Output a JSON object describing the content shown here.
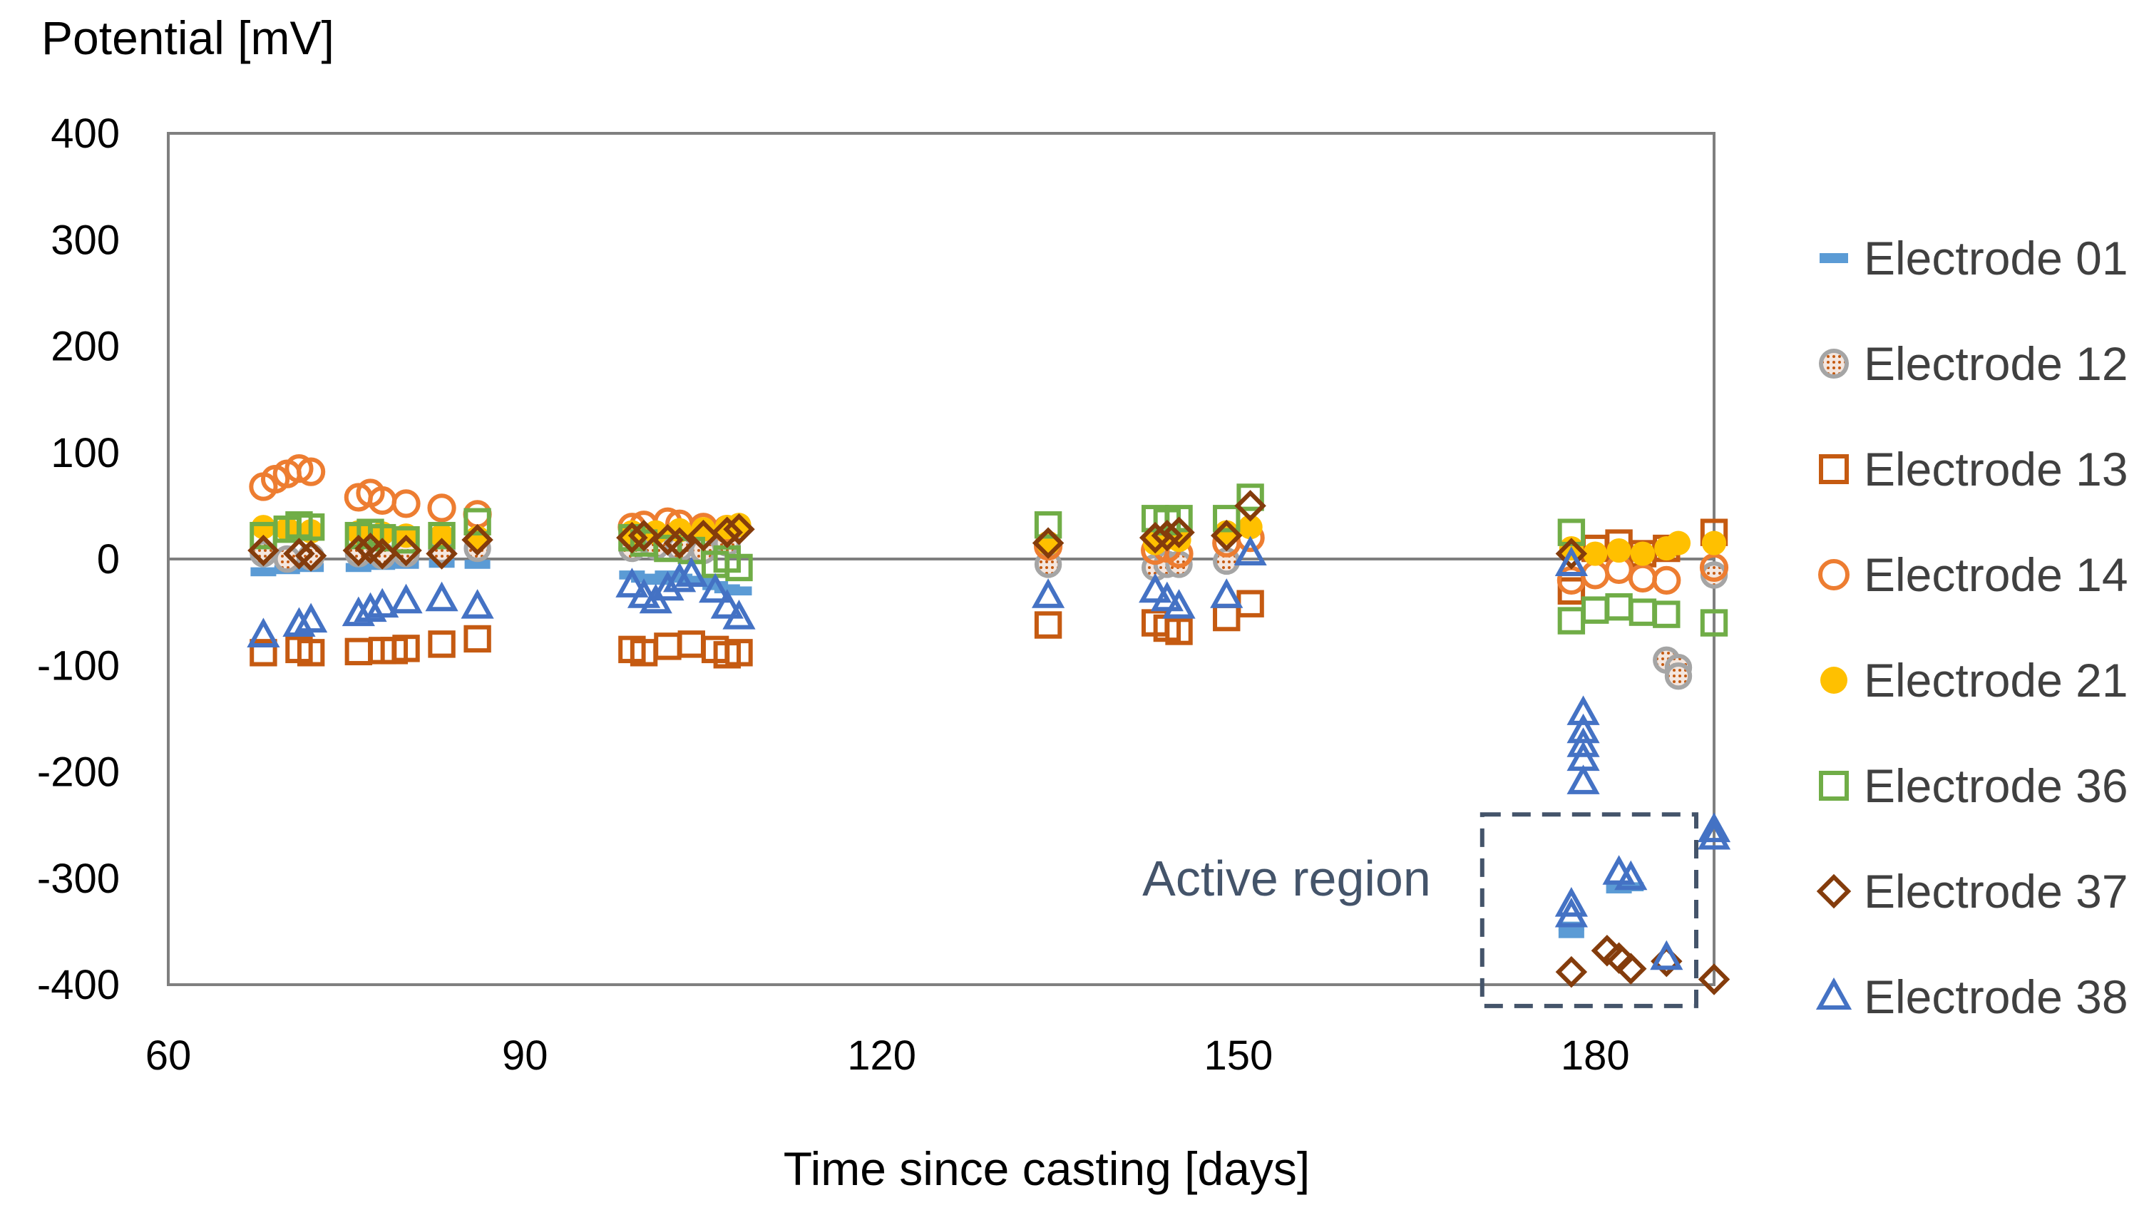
{
  "chart_data": {
    "type": "scatter",
    "title": "",
    "xlabel": "Time since casting [days]",
    "ylabel": "Potential [mV]",
    "xlim": [
      60,
      190
    ],
    "ylim": [
      -400,
      400
    ],
    "xticks": [
      60,
      90,
      120,
      150,
      180
    ],
    "yticks": [
      400,
      300,
      200,
      100,
      0,
      -100,
      -200,
      -300,
      -400
    ],
    "grid": false,
    "legend_position": "right",
    "colors": {
      "electrode_01": "#5B9BD5",
      "electrode_12": "#A5A5A5",
      "electrode_13": "#C55A11",
      "electrode_14": "#ED7D31",
      "electrode_21": "#FFC000",
      "electrode_36": "#70AD47",
      "electrode_37": "#843C0C",
      "electrode_38": "#4472C4",
      "annotation": "#44546A",
      "axis": "#7F7F7F"
    },
    "annotations": [
      {
        "text": "Active region",
        "box_x": [
          170.5,
          188.5
        ],
        "box_y": [
          -420,
          -240
        ]
      }
    ],
    "series": [
      {
        "name": "Electrode 01",
        "marker": "dash",
        "color_key": "electrode_01",
        "points": [
          [
            68,
            -12
          ],
          [
            70,
            -10
          ],
          [
            72,
            -8
          ],
          [
            76,
            -8
          ],
          [
            78,
            -6
          ],
          [
            80,
            -5
          ],
          [
            83,
            -4
          ],
          [
            86,
            -5
          ],
          [
            99,
            -15
          ],
          [
            100,
            -18
          ],
          [
            101,
            -20
          ],
          [
            102,
            -15
          ],
          [
            103,
            -18
          ],
          [
            104,
            -20
          ],
          [
            105,
            -22
          ],
          [
            106,
            -25
          ],
          [
            107,
            -28
          ],
          [
            108,
            -30
          ],
          [
            178,
            -345
          ],
          [
            178,
            -352
          ],
          [
            182,
            -310
          ],
          [
            183,
            -308
          ]
        ]
      },
      {
        "name": "Electrode 12",
        "marker": "dotted-circle",
        "color_key": "electrode_12",
        "points": [
          [
            68,
            5
          ],
          [
            70,
            0
          ],
          [
            72,
            2
          ],
          [
            76,
            5
          ],
          [
            78,
            3
          ],
          [
            80,
            5
          ],
          [
            83,
            8
          ],
          [
            86,
            10
          ],
          [
            99,
            10
          ],
          [
            101,
            12
          ],
          [
            103,
            10
          ],
          [
            105,
            8
          ],
          [
            107,
            15
          ],
          [
            134,
            -5
          ],
          [
            143,
            -8
          ],
          [
            144,
            -5
          ],
          [
            145,
            -5
          ],
          [
            149,
            -2
          ],
          [
            186,
            -95
          ],
          [
            187,
            -102
          ],
          [
            187,
            -110
          ],
          [
            190,
            -15
          ]
        ]
      },
      {
        "name": "Electrode 13",
        "marker": "square-open",
        "color_key": "electrode_13",
        "points": [
          [
            68,
            -88
          ],
          [
            71,
            -85
          ],
          [
            72,
            -88
          ],
          [
            76,
            -87
          ],
          [
            78,
            -86
          ],
          [
            79,
            -86
          ],
          [
            80,
            -84
          ],
          [
            83,
            -80
          ],
          [
            86,
            -75
          ],
          [
            99,
            -85
          ],
          [
            100,
            -88
          ],
          [
            102,
            -82
          ],
          [
            104,
            -80
          ],
          [
            106,
            -85
          ],
          [
            107,
            -90
          ],
          [
            108,
            -88
          ],
          [
            134,
            -62
          ],
          [
            143,
            -60
          ],
          [
            144,
            -65
          ],
          [
            145,
            -68
          ],
          [
            149,
            -55
          ],
          [
            151,
            -42
          ],
          [
            178,
            -30
          ],
          [
            180,
            10
          ],
          [
            182,
            15
          ],
          [
            184,
            5
          ],
          [
            186,
            10
          ],
          [
            190,
            25
          ]
        ]
      },
      {
        "name": "Electrode 14",
        "marker": "circle-open",
        "color_key": "electrode_14",
        "points": [
          [
            68,
            68
          ],
          [
            69,
            75
          ],
          [
            70,
            80
          ],
          [
            71,
            85
          ],
          [
            72,
            82
          ],
          [
            76,
            58
          ],
          [
            77,
            62
          ],
          [
            78,
            55
          ],
          [
            80,
            52
          ],
          [
            83,
            48
          ],
          [
            86,
            42
          ],
          [
            99,
            30
          ],
          [
            100,
            32
          ],
          [
            102,
            35
          ],
          [
            103,
            33
          ],
          [
            105,
            30
          ],
          [
            107,
            28
          ],
          [
            134,
            12
          ],
          [
            143,
            8
          ],
          [
            144,
            10
          ],
          [
            145,
            5
          ],
          [
            149,
            15
          ],
          [
            151,
            20
          ],
          [
            178,
            -20
          ],
          [
            180,
            -15
          ],
          [
            182,
            -10
          ],
          [
            184,
            -18
          ],
          [
            186,
            -20
          ],
          [
            190,
            -8
          ]
        ]
      },
      {
        "name": "Electrode 21",
        "marker": "circle-filled",
        "color_key": "electrode_21",
        "points": [
          [
            68,
            30
          ],
          [
            70,
            28
          ],
          [
            72,
            26
          ],
          [
            76,
            25
          ],
          [
            78,
            24
          ],
          [
            80,
            22
          ],
          [
            83,
            22
          ],
          [
            86,
            20
          ],
          [
            99,
            25
          ],
          [
            101,
            25
          ],
          [
            103,
            27
          ],
          [
            105,
            28
          ],
          [
            107,
            30
          ],
          [
            108,
            32
          ],
          [
            134,
            15
          ],
          [
            143,
            15
          ],
          [
            144,
            20
          ],
          [
            145,
            18
          ],
          [
            149,
            25
          ],
          [
            151,
            30
          ],
          [
            178,
            10
          ],
          [
            180,
            5
          ],
          [
            182,
            8
          ],
          [
            184,
            5
          ],
          [
            186,
            10
          ],
          [
            187,
            15
          ],
          [
            190,
            15
          ]
        ]
      },
      {
        "name": "Electrode 36",
        "marker": "square-open",
        "color_key": "electrode_36",
        "points": [
          [
            68,
            22
          ],
          [
            70,
            28
          ],
          [
            71,
            32
          ],
          [
            72,
            30
          ],
          [
            76,
            22
          ],
          [
            77,
            25
          ],
          [
            78,
            20
          ],
          [
            80,
            18
          ],
          [
            83,
            22
          ],
          [
            86,
            35
          ],
          [
            99,
            20
          ],
          [
            100,
            15
          ],
          [
            102,
            10
          ],
          [
            104,
            8
          ],
          [
            106,
            -5
          ],
          [
            107,
            0
          ],
          [
            108,
            -8
          ],
          [
            134,
            32
          ],
          [
            143,
            38
          ],
          [
            144,
            35
          ],
          [
            145,
            38
          ],
          [
            149,
            38
          ],
          [
            151,
            58
          ],
          [
            178,
            25
          ],
          [
            178,
            -58
          ],
          [
            180,
            -48
          ],
          [
            182,
            -45
          ],
          [
            184,
            -50
          ],
          [
            186,
            -52
          ],
          [
            190,
            -60
          ]
        ]
      },
      {
        "name": "Electrode 37",
        "marker": "diamond-open",
        "color_key": "electrode_37",
        "points": [
          [
            68,
            8
          ],
          [
            71,
            5
          ],
          [
            72,
            3
          ],
          [
            76,
            8
          ],
          [
            77,
            10
          ],
          [
            78,
            5
          ],
          [
            80,
            8
          ],
          [
            83,
            5
          ],
          [
            86,
            18
          ],
          [
            99,
            20
          ],
          [
            100,
            22
          ],
          [
            102,
            18
          ],
          [
            103,
            15
          ],
          [
            105,
            22
          ],
          [
            107,
            25
          ],
          [
            108,
            28
          ],
          [
            134,
            15
          ],
          [
            143,
            20
          ],
          [
            144,
            22
          ],
          [
            145,
            25
          ],
          [
            149,
            22
          ],
          [
            151,
            50
          ],
          [
            178,
            5
          ],
          [
            178,
            -388
          ],
          [
            181,
            -368
          ],
          [
            182,
            -375
          ],
          [
            183,
            -385
          ],
          [
            186,
            -378
          ],
          [
            190,
            -395
          ]
        ]
      },
      {
        "name": "Electrode 38",
        "marker": "triangle-open",
        "color_key": "electrode_38",
        "points": [
          [
            68,
            -72
          ],
          [
            71,
            -62
          ],
          [
            72,
            -58
          ],
          [
            76,
            -52
          ],
          [
            77,
            -48
          ],
          [
            78,
            -44
          ],
          [
            80,
            -40
          ],
          [
            83,
            -38
          ],
          [
            86,
            -45
          ],
          [
            99,
            -25
          ],
          [
            100,
            -35
          ],
          [
            101,
            -40
          ],
          [
            102,
            -28
          ],
          [
            103,
            -20
          ],
          [
            104,
            -15
          ],
          [
            106,
            -30
          ],
          [
            107,
            -45
          ],
          [
            108,
            -55
          ],
          [
            134,
            -35
          ],
          [
            143,
            -30
          ],
          [
            144,
            -38
          ],
          [
            145,
            -45
          ],
          [
            149,
            -35
          ],
          [
            151,
            5
          ],
          [
            178,
            -5
          ],
          [
            178,
            -325
          ],
          [
            178,
            -335
          ],
          [
            179,
            -145
          ],
          [
            179,
            -162
          ],
          [
            179,
            -175
          ],
          [
            179,
            -188
          ],
          [
            179,
            -210
          ],
          [
            182,
            -295
          ],
          [
            183,
            -300
          ],
          [
            186,
            -375
          ],
          [
            190,
            -255
          ],
          [
            190,
            -262
          ]
        ]
      }
    ]
  }
}
